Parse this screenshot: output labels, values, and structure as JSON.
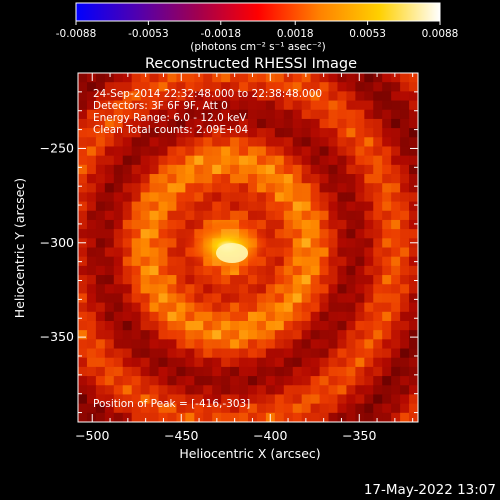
{
  "colorbar": {
    "tick_labels": [
      "-0.0088",
      "-0.0053",
      "-0.0018",
      "0.0018",
      "0.0053",
      "0.0088"
    ],
    "tick_values": [
      -0.0088,
      -0.0053,
      -0.0018,
      0.0018,
      0.0053,
      0.0088
    ],
    "range": [
      -0.0088,
      0.0088
    ],
    "units_label": "(photons cm⁻² s⁻¹ asec⁻²)",
    "colormap_stops": [
      "#0000ff",
      "#5000b0",
      "#a00050",
      "#ff0000",
      "#ff8000",
      "#ffd000",
      "#ffffff"
    ]
  },
  "chart_data": {
    "type": "heatmap",
    "title": "Reconstructed RHESSI Image",
    "xlabel": "Heliocentric X (arcsec)",
    "ylabel": "Heliocentric Y (arcsec)",
    "xlim": [
      -508,
      -317
    ],
    "ylim": [
      -395,
      -210
    ],
    "x_ticks": [
      -500,
      -450,
      -400,
      -350
    ],
    "y_ticks": [
      -350,
      -300,
      -250
    ],
    "x_tick_labels": [
      "−500",
      "−450",
      "−400",
      "−350"
    ],
    "y_tick_labels": [
      "−350",
      "−300",
      "−250"
    ],
    "annotations": [
      "24-Sep-2014 22:32:48.000 to 22:38:48.000",
      "Detectors: 3F 6F 9F, Att 0",
      "Energy Range: 6.0 - 12.0 keV",
      "Clean    Total counts: 2.09E+04"
    ],
    "peak_label": "Position of Peak = [-416,-303]",
    "peak_position": [
      -416,
      -303
    ],
    "source_centroid": [
      -424,
      -302
    ],
    "colorbar_range": [
      -0.0088,
      0.0088
    ]
  },
  "footer": {
    "timestamp": "17-May-2022 13:07"
  }
}
